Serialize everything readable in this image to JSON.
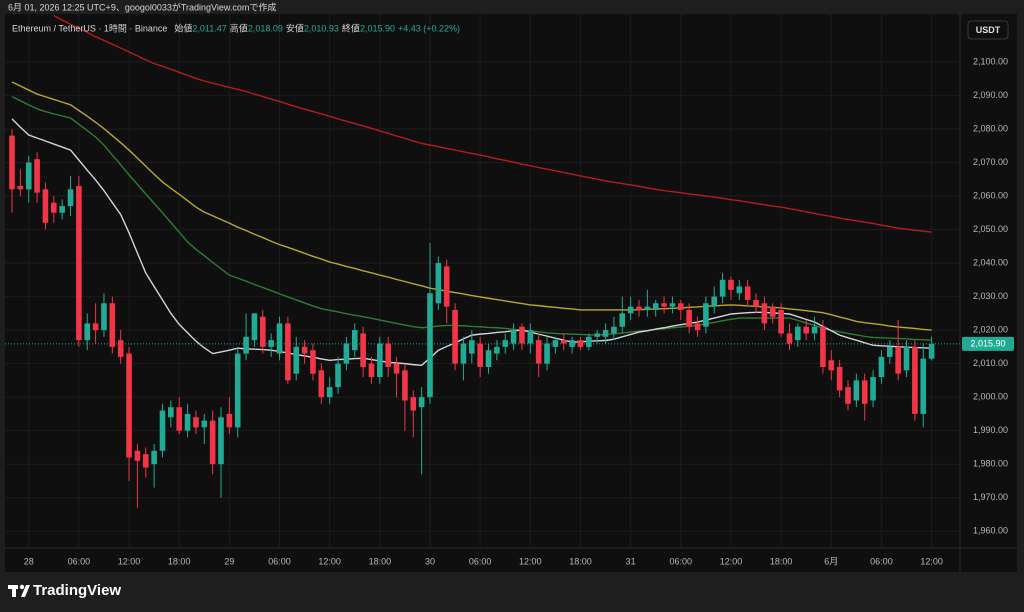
{
  "chart_data": {
    "type": "candlestick",
    "caption": "6月 01, 2026 12:25 UTC+9、googol0033がTradingView.comで作成",
    "symbol": "Ethereum / TetherUS · 1時間 · Binance",
    "legend": [
      {
        "label": "始値",
        "value": "2,011.47"
      },
      {
        "label": "高値",
        "value": "2,018.09"
      },
      {
        "label": "安値",
        "value": "2,010.93"
      },
      {
        "label": "終値",
        "value": "2,015.90"
      }
    ],
    "change": "+4.43 (+0.22%)",
    "currency": "USDT",
    "brand": "TradingView",
    "categories": [
      null,
      null,
      "28",
      null,
      null,
      null,
      null,
      null,
      "06:00",
      null,
      null,
      null,
      null,
      null,
      "12:00",
      null,
      null,
      null,
      null,
      null,
      "18:00",
      null,
      null,
      null,
      null,
      null,
      "29",
      null,
      null,
      null,
      null,
      null,
      "06:00",
      null,
      null,
      null,
      null,
      null,
      "12:00",
      null,
      null,
      null,
      null,
      null,
      "18:00",
      null,
      null,
      null,
      null,
      null,
      "30",
      null,
      null,
      null,
      null,
      null,
      "06:00",
      null,
      null,
      null,
      null,
      null,
      "12:00",
      null,
      null,
      null,
      null,
      null,
      "18:00",
      null,
      null,
      null,
      null,
      null,
      "31",
      null,
      null,
      null,
      null,
      null,
      "06:00",
      null,
      null,
      null,
      null,
      null,
      "12:00",
      null,
      null,
      null,
      null,
      null,
      "18:00",
      null,
      null,
      null,
      null,
      null,
      "6月",
      null,
      null,
      null,
      null,
      null,
      "06:00",
      null,
      null,
      null,
      null,
      null,
      "12:00"
    ],
    "open": [
      2078,
      2063,
      2062,
      2071,
      2062,
      2058,
      2055,
      2057,
      2063,
      2017,
      2022,
      2020,
      2028,
      2017,
      2013,
      1984,
      1983,
      1980,
      1984,
      1994,
      1997,
      1990,
      1994,
      1991,
      1993,
      1980,
      1995,
      1991,
      2013,
      2017,
      2024,
      2015,
      2013,
      2022,
      2007,
      2015,
      2014,
      2008,
      2000,
      2003,
      2010,
      2014,
      2019,
      2010,
      2006,
      2016,
      2010,
      2008,
      2000,
      1997,
      2000,
      2028,
      2039,
      2026,
      2010,
      2013,
      2016,
      2009,
      2013,
      2015,
      2016,
      2021,
      2016,
      2017,
      2010,
      2015,
      2017,
      2015,
      2017,
      2015,
      2018,
      2018,
      2019,
      2021,
      2025,
      2027,
      2026,
      2026,
      2028,
      2027,
      2028,
      2026,
      2022,
      2021,
      2027,
      2030,
      2035,
      2031,
      2033,
      2029,
      2028,
      2027,
      2026,
      2019,
      2017,
      2021,
      2019,
      2021,
      2011,
      2009,
      2003,
      1999,
      2005,
      1999,
      2006,
      2012,
      2015,
      2008,
      2015,
      1995,
      2011.47
    ],
    "high": [
      2080,
      2068,
      2072,
      2073,
      2064,
      2060,
      2059,
      2066,
      2066,
      2025,
      2028,
      2031,
      2030,
      2020,
      2015,
      1986,
      1985,
      1986,
      1998,
      1999,
      2000,
      1998,
      1996,
      1995,
      1996,
      1997,
      2000,
      2015,
      2025,
      2025,
      2026,
      2019,
      2024,
      2024,
      2018,
      2017,
      2016,
      2010,
      2006,
      2012,
      2018,
      2022,
      2021,
      2012,
      2018,
      2018,
      2012,
      2010,
      2002,
      2003,
      2046,
      2042,
      2041,
      2028,
      2018,
      2020,
      2018,
      2016,
      2017,
      2019,
      2022,
      2022,
      2022,
      2019,
      2018,
      2018,
      2019,
      2018,
      2018,
      2019,
      2020,
      2022,
      2024,
      2030,
      2030,
      2029,
      2032,
      2029,
      2030,
      2030,
      2029,
      2028,
      2024,
      2030,
      2033,
      2037,
      2036,
      2035,
      2035,
      2031,
      2030,
      2028,
      2028,
      2022,
      2022,
      2023,
      2024,
      2023,
      2014,
      2011,
      2005,
      2007,
      2007,
      2008,
      2014,
      2017,
      2023,
      2017,
      2017,
      2016,
      2018.09
    ],
    "low": [
      2055,
      2060,
      2058,
      2058,
      2050,
      2052,
      2053,
      2054,
      2015,
      2014,
      2016,
      2018,
      2013,
      2010,
      1975,
      1967,
      1976,
      1973,
      1982,
      1991,
      1989,
      1988,
      1989,
      1986,
      1977,
      1970,
      1989,
      1988,
      2011,
      2015,
      2013,
      2012,
      2011,
      2004,
      2005,
      2010,
      2005,
      1998,
      1998,
      2001,
      2008,
      2012,
      2006,
      2004,
      2004,
      2006,
      2000,
      1990,
      1988,
      1977,
      1998,
      2026,
      2022,
      2008,
      2005,
      2010,
      2006,
      2007,
      2011,
      2013,
      2014,
      2014,
      2013,
      2006,
      2008,
      2013,
      2014,
      2013,
      2014,
      2014,
      2016,
      2016,
      2017,
      2019,
      2023,
      2024,
      2024,
      2024,
      2025,
      2025,
      2023,
      2019,
      2018,
      2019,
      2025,
      2028,
      2029,
      2029,
      2027,
      2025,
      2020,
      2022,
      2018,
      2014,
      2015,
      2017,
      2017,
      2007,
      2005,
      2000,
      1996,
      1997,
      1993,
      1997,
      2004,
      2010,
      2005,
      2006,
      1993,
      1991,
      2010.93
    ],
    "close": [
      2062,
      2062,
      2070,
      2061,
      2052,
      2055,
      2057,
      2062,
      2017,
      2022,
      2020,
      2028,
      2015,
      2012,
      1982,
      1981,
      1979,
      1984,
      1996,
      1997,
      1990,
      1995,
      1991,
      1993,
      1980,
      1994,
      1991,
      2013,
      2018,
      2025,
      2015,
      2017,
      2022,
      2005,
      2015,
      2013,
      2007,
      2000,
      2003,
      2010,
      2016,
      2020,
      2009,
      2006,
      2016,
      2009,
      2007,
      1999,
      1996,
      2000,
      2031,
      2040,
      2027,
      2010,
      2016,
      2017,
      2009,
      2014,
      2015,
      2017,
      2020,
      2016,
      2020,
      2010,
      2016,
      2017,
      2016,
      2017,
      2015,
      2018,
      2019,
      2020,
      2021,
      2025,
      2027,
      2026,
      2027,
      2028,
      2027,
      2028,
      2026,
      2021,
      2020,
      2028,
      2030,
      2035,
      2032,
      2033,
      2029,
      2027,
      2022,
      2024,
      2019,
      2016,
      2021,
      2019,
      2021,
      2009,
      2008,
      2002,
      1998,
      2005,
      1998,
      2006,
      2012,
      2015,
      2007,
      2015,
      1995,
      2011.5,
      2015.9
    ],
    "up_color": "#22ab94",
    "down_color": "#f23645",
    "moving_averages": [
      {
        "color": "#b71c1c",
        "values": [
          null,
          null,
          null,
          null,
          null,
          2113.8,
          2112.5,
          2111.2,
          2110,
          2108.8,
          2107.5,
          2106.4,
          2105.3,
          2104.1,
          2103,
          2101.8,
          2100.6,
          2099.5,
          2098.7,
          2097.8,
          2096.9,
          2096,
          2095.1,
          2094.3,
          2093.7,
          2093,
          2092.4,
          2091.8,
          2091.2,
          2090.4,
          2089.7,
          2088.9,
          2088.2,
          2087.4,
          2086.6,
          2085.9,
          2085.2,
          2084.5,
          2083.8,
          2083,
          2082.3,
          2081.6,
          2080.9,
          2080.2,
          2079.4,
          2078.7,
          2077.9,
          2077.2,
          2076.4,
          2075.7,
          2075.2,
          2074.7,
          2074.2,
          2073.7,
          2073.2,
          2072.7,
          2072.2,
          2071.7,
          2071.1,
          2070.6,
          2070.1,
          2069.5,
          2069,
          2068.5,
          2068,
          2067.5,
          2067,
          2066.5,
          2066,
          2065.5,
          2065,
          2064.5,
          2064.1,
          2063.7,
          2063.3,
          2062.9,
          2062.4,
          2062,
          2061.6,
          2061.3,
          2061,
          2060.6,
          2060.3,
          2060,
          2059.7,
          2059.3,
          2058.9,
          2058.6,
          2058.2,
          2057.8,
          2057.4,
          2057,
          2056.7,
          2056.2,
          2055.8,
          2055.3,
          2054.8,
          2054.3,
          2053.9,
          2053.4,
          2053,
          2052.6,
          2052.2,
          2051.8,
          2051.3,
          2050.9,
          2050.4,
          2050.1,
          2049.8,
          2049.5,
          2049.2
        ]
      },
      {
        "color": "#b8a82c",
        "values": [
          2094,
          2092.8,
          2091.6,
          2090.4,
          2089.6,
          2088.8,
          2088,
          2087.2,
          2085.5,
          2083.8,
          2082,
          2080.1,
          2078,
          2075.9,
          2073.7,
          2071.3,
          2068.9,
          2066.5,
          2064.2,
          2062.3,
          2060.5,
          2058.6,
          2056.7,
          2055.2,
          2054.1,
          2053,
          2051.9,
          2050.7,
          2049.7,
          2048.6,
          2047.6,
          2046.5,
          2045.5,
          2044.7,
          2043.8,
          2042.9,
          2042,
          2041.2,
          2040.3,
          2039.7,
          2039,
          2038.4,
          2037.7,
          2037.1,
          2036.4,
          2035.8,
          2035.1,
          2034.5,
          2033.8,
          2033.2,
          2032.5,
          2032.1,
          2031.6,
          2031.2,
          2030.8,
          2030.3,
          2029.9,
          2029.5,
          2029.1,
          2028.7,
          2028.3,
          2027.9,
          2027.5,
          2027.3,
          2027,
          2026.8,
          2026.5,
          2026.3,
          2026,
          2026,
          2026,
          2026,
          2026,
          2026,
          2026,
          2026.1,
          2026.2,
          2026.3,
          2026.4,
          2026.5,
          2026.6,
          2026.8,
          2026.9,
          2027.1,
          2027.2,
          2027.4,
          2027.5,
          2027.4,
          2027.2,
          2027.1,
          2026.9,
          2026.8,
          2026.6,
          2026.3,
          2026.1,
          2025.8,
          2025.5,
          2025.2,
          2024.6,
          2023.9,
          2023.3,
          2022.6,
          2022.2,
          2021.9,
          2021.6,
          2021.2,
          2020.9,
          2020.7,
          2020.5,
          2020.2,
          2020
        ]
      },
      {
        "color": "#2e7d32",
        "values": [
          2089.6,
          2088.4,
          2087.2,
          2086,
          2085.2,
          2084.5,
          2083.9,
          2083.3,
          2081.4,
          2079.5,
          2077.6,
          2075.2,
          2072.2,
          2069.3,
          2066.3,
          2063.5,
          2060.6,
          2057.8,
          2055,
          2052.1,
          2049.2,
          2046.3,
          2044.1,
          2042.2,
          2040.2,
          2038.3,
          2036.4,
          2035.5,
          2034.6,
          2033.6,
          2032.7,
          2031.8,
          2030.8,
          2029.9,
          2029,
          2028.1,
          2027.2,
          2026.4,
          2025.9,
          2025.4,
          2024.9,
          2024.4,
          2024,
          2023.5,
          2023,
          2022.5,
          2022,
          2021.5,
          2021,
          2020.7,
          2020.9,
          2021.2,
          2021.4,
          2021.4,
          2021.3,
          2021.1,
          2021,
          2020.8,
          2020.7,
          2020.5,
          2020.2,
          2020,
          2019.7,
          2019.5,
          2019.2,
          2019,
          2018.9,
          2018.8,
          2018.7,
          2018.6,
          2018.5,
          2018.7,
          2018.9,
          2019.1,
          2019.4,
          2019.7,
          2019.9,
          2020.2,
          2020.4,
          2020.7,
          2020.9,
          2021.2,
          2021.4,
          2021.9,
          2022.3,
          2022.8,
          2023.2,
          2023.6,
          2023.6,
          2023.6,
          2023.6,
          2023.6,
          2023.6,
          2023.6,
          2022.9,
          2022.1,
          2021.4,
          2020.6,
          2019.9,
          2019.5,
          2019,
          2018.6,
          2018.1,
          2017.8,
          2017.7,
          2017.6,
          2017.5,
          2017.4,
          2017.2,
          2017.1,
          2017
        ]
      },
      {
        "color": "#d1d4dc",
        "values": [
          2083,
          2080.5,
          2078.2,
          2077.3,
          2076.4,
          2075.5,
          2074.6,
          2073.7,
          2070.7,
          2067.7,
          2064.8,
          2061.6,
          2058,
          2054.5,
          2049,
          2043,
          2037,
          2033,
          2029,
          2025,
          2021.7,
          2019.2,
          2016.7,
          2014.7,
          2013,
          2013.5,
          2014,
          2014.6,
          2014.4,
          2014.3,
          2014.2,
          2014,
          2013.6,
          2013.2,
          2012.7,
          2012.3,
          2011.9,
          2011.4,
          2011,
          2011.2,
          2011.3,
          2011.5,
          2011.6,
          2011.2,
          2010.8,
          2010.4,
          2010.2,
          2010,
          2009.7,
          2009.5,
          2011.7,
          2014,
          2015.1,
          2016.2,
          2017.4,
          2018.5,
          2018.8,
          2019,
          2019.3,
          2019.5,
          2019.8,
          2020,
          2019.4,
          2018.8,
          2018.2,
          2017.6,
          2017,
          2016.4,
          2016.5,
          2016.7,
          2016.8,
          2016.9,
          2017.3,
          2018,
          2018.7,
          2019.4,
          2019.8,
          2020.3,
          2020.7,
          2021.2,
          2021.6,
          2022,
          2022.4,
          2023,
          2023.6,
          2024.2,
          2024.8,
          2025,
          2025.2,
          2025.3,
          2025.3,
          2025.1,
          2025,
          2024.8,
          2024,
          2023.2,
          2022.4,
          2021.1,
          2019.8,
          2018.5,
          2017.7,
          2017,
          2016.2,
          2015.5,
          2015.3,
          2015.2,
          2015,
          2014.9,
          2014.8,
          2014.7,
          2014.6
        ]
      }
    ],
    "last_price": {
      "value": 2015.9,
      "label": "2,015.90"
    },
    "ylim": [
      1955,
      2112.5
    ],
    "yticks": [
      {
        "value": 1960,
        "label": "1,960.00"
      },
      {
        "value": 1970,
        "label": "1,970.00"
      },
      {
        "value": 1980,
        "label": "1,980.00"
      },
      {
        "value": 1990,
        "label": "1,990.00"
      },
      {
        "value": 2000,
        "label": "2,000.00"
      },
      {
        "value": 2010,
        "label": "2,010.00"
      },
      {
        "value": 2020,
        "label": "2,020.00"
      },
      {
        "value": 2030,
        "label": "2,030.00"
      },
      {
        "value": 2040,
        "label": "2,040.00"
      },
      {
        "value": 2050,
        "label": "2,050.00"
      },
      {
        "value": 2060,
        "label": "2,060.00"
      },
      {
        "value": 2070,
        "label": "2,070.00"
      },
      {
        "value": 2080,
        "label": "2,080.00"
      },
      {
        "value": 2090,
        "label": "2,090.00"
      },
      {
        "value": 2100,
        "label": "2,100.00"
      }
    ],
    "grid": true
  }
}
